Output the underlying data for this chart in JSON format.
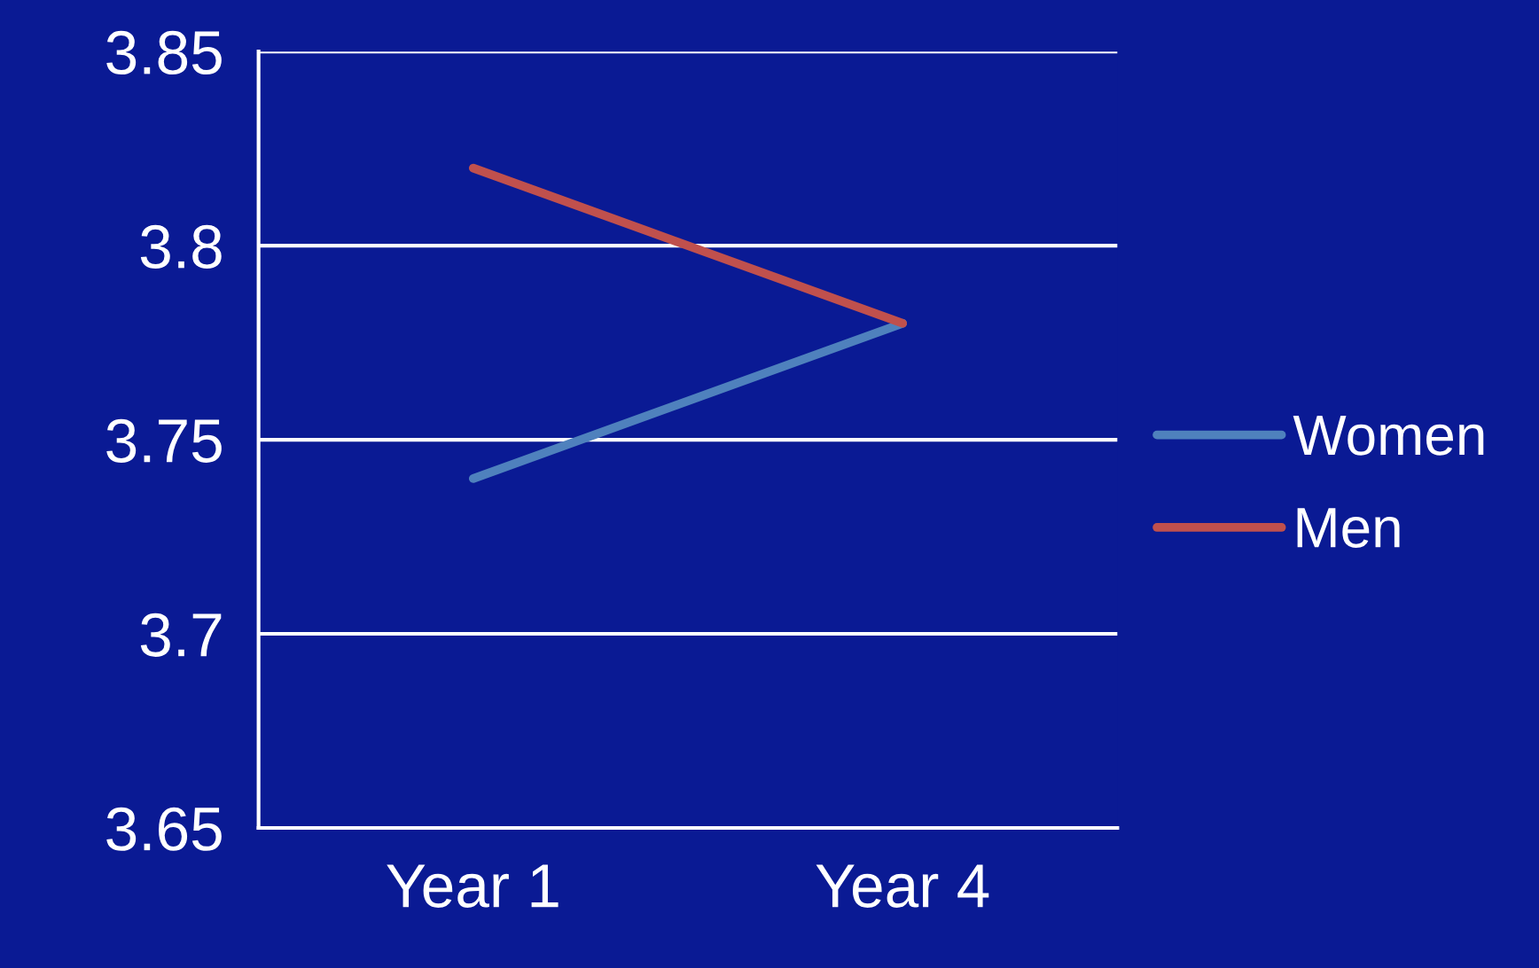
{
  "chart_data": {
    "type": "line",
    "categories": [
      "Year 1",
      "Year 4"
    ],
    "series": [
      {
        "name": "Women",
        "color": "#4f81bd",
        "values": [
          3.74,
          3.78
        ]
      },
      {
        "name": "Men",
        "color": "#c0504d",
        "values": [
          3.82,
          3.78
        ]
      }
    ],
    "ylim": [
      3.65,
      3.85
    ],
    "yticks": [
      3.65,
      3.7,
      3.75,
      3.8,
      3.85
    ],
    "grid": "y",
    "legend": "right",
    "marker": "none",
    "line_style": "solid"
  }
}
